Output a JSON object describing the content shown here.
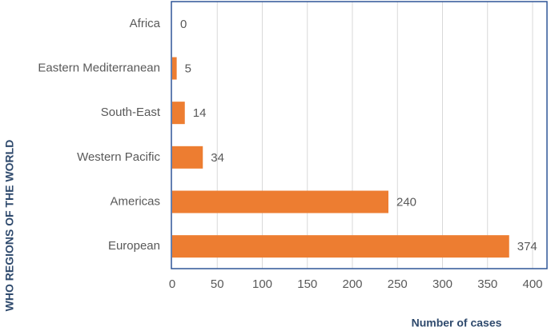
{
  "chart_data": {
    "type": "bar",
    "orientation": "horizontal",
    "x_label": "Number of cases",
    "y_label": "WHO REGIONS OF THE WORLD",
    "categories": [
      "Africa",
      "Eastern Mediterranean",
      "South-East",
      "Western Pacific",
      "Americas",
      "European"
    ],
    "values": [
      0,
      5,
      14,
      34,
      240,
      374
    ],
    "color": "#ed7d31",
    "xlim": [
      0,
      400
    ],
    "xticks": [
      0,
      50,
      100,
      150,
      200,
      250,
      300,
      350,
      400
    ],
    "grid": true
  }
}
